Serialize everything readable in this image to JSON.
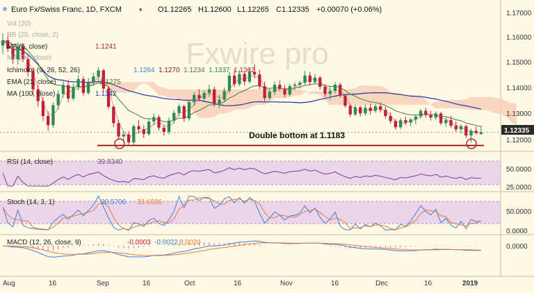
{
  "colors": {
    "background": "#fdf9e6",
    "up": "#2e8b57",
    "down": "#c0203a",
    "ma100": "#2233aa",
    "ema21": "#4b7f25",
    "bb": "#e07050",
    "cloud_fill": "#f6c9b3",
    "cloud_fill_green": "#cfdca0",
    "rsi": "#7b3b8f",
    "stoch_k": "#3b7fd8",
    "stoch_d": "#e87a36",
    "macd": "#3b7fd8",
    "macd_signal": "#e87a36",
    "macd_hist": "#e06a7a",
    "price_badge": "#2b2b2b",
    "support_line": "#8b0000"
  },
  "header": {
    "symbol": "Euro Fx/Swiss Franc, 1D, FXCM",
    "open": "O1.12265",
    "high": "H1.12600",
    "low": "L1.12265",
    "close": "C1.12335",
    "change": "+0.00070 (+0.06%)"
  },
  "indicators": [
    {
      "name": "Vol (20)",
      "value": ""
    },
    {
      "name": "BB (20, close, 2)",
      "value": ""
    },
    {
      "name": "MA (5, close)",
      "value": "1.1241"
    },
    {
      "name": "MA (20, close)",
      "value": ""
    },
    {
      "name": "Ichimoku (9, 26, 52, 26)",
      "values": [
        "1.1264",
        "1.1270",
        "1.1234",
        "1.1337",
        "1.1362"
      ]
    },
    {
      "name": "EMA (21, close)",
      "value": "1.1275"
    },
    {
      "name": "MA (100, close)",
      "value": "1.1342"
    }
  ],
  "watermark": "Fxwire pro",
  "annotation": "Double bottom at 1.1183",
  "price_badge": "1.12335",
  "panes": {
    "rsi": {
      "label": "RSI (14, close)",
      "value": "39.8340",
      "ticks": [
        "50.0000",
        "25.0000"
      ]
    },
    "stoch": {
      "label": "Stoch (14, 3, 1)",
      "k": "30.5706",
      "d": "33.6336",
      "ticks": [
        "50.0000",
        "0.0000"
      ]
    },
    "macd": {
      "label": "MACD (12, 26, close, 9)",
      "v1": "-0.0003",
      "v2": "-0.0022",
      "v3": "0.0020",
      "ticks": [
        "0.0000"
      ]
    }
  },
  "chart_data": {
    "type": "candlestick",
    "y_ticks": [
      "1.17000",
      "1.16000",
      "1.15000",
      "1.14000",
      "1.13000",
      "1.12000"
    ],
    "ylim": [
      1.116,
      1.1745
    ],
    "x_labels": [
      "Aug",
      "16",
      "Sep",
      "16",
      "Oct",
      "16",
      "Nov",
      "16",
      "Dec",
      "16",
      "2019"
    ],
    "support_level": 1.1183,
    "last_close": 1.12335,
    "candles": [
      [
        1.1573,
        1.162,
        1.154,
        1.1593
      ],
      [
        1.1593,
        1.1612,
        1.1548,
        1.156
      ],
      [
        1.156,
        1.1578,
        1.1502,
        1.1518
      ],
      [
        1.1518,
        1.1586,
        1.1498,
        1.1569
      ],
      [
        1.1569,
        1.158,
        1.1508,
        1.152
      ],
      [
        1.152,
        1.1535,
        1.1452,
        1.147
      ],
      [
        1.147,
        1.1488,
        1.138,
        1.1402
      ],
      [
        1.1402,
        1.1418,
        1.1335,
        1.1356
      ],
      [
        1.1356,
        1.1372,
        1.1278,
        1.1298
      ],
      [
        1.1298,
        1.1316,
        1.124,
        1.1262
      ],
      [
        1.1262,
        1.1352,
        1.1252,
        1.134
      ],
      [
        1.134,
        1.1398,
        1.1322,
        1.1384
      ],
      [
        1.1384,
        1.1433,
        1.137,
        1.1418
      ],
      [
        1.1418,
        1.1438,
        1.1352,
        1.1366
      ],
      [
        1.1366,
        1.1425,
        1.1358,
        1.141
      ],
      [
        1.141,
        1.1456,
        1.1398,
        1.1442
      ],
      [
        1.1442,
        1.1452,
        1.1376,
        1.1388
      ],
      [
        1.1388,
        1.1446,
        1.138,
        1.1432
      ],
      [
        1.1432,
        1.1466,
        1.1415,
        1.1452
      ],
      [
        1.1452,
        1.1488,
        1.1436,
        1.1476
      ],
      [
        1.1476,
        1.1482,
        1.1395,
        1.1405
      ],
      [
        1.1405,
        1.1412,
        1.1325,
        1.1334
      ],
      [
        1.1334,
        1.134,
        1.1254,
        1.127
      ],
      [
        1.127,
        1.1282,
        1.1205,
        1.1218
      ],
      [
        1.1218,
        1.124,
        1.1198,
        1.1226
      ],
      [
        1.1226,
        1.1238,
        1.1183,
        1.1195
      ],
      [
        1.1195,
        1.1266,
        1.1185,
        1.1258
      ],
      [
        1.1258,
        1.1282,
        1.1232,
        1.1246
      ],
      [
        1.1246,
        1.1262,
        1.1212,
        1.1228
      ],
      [
        1.1228,
        1.1288,
        1.122,
        1.1276
      ],
      [
        1.1276,
        1.1308,
        1.1262,
        1.1294
      ],
      [
        1.1294,
        1.1302,
        1.1242,
        1.1252
      ],
      [
        1.1252,
        1.1262,
        1.1222,
        1.1236
      ],
      [
        1.1236,
        1.1292,
        1.1226,
        1.128
      ],
      [
        1.128,
        1.1322,
        1.1268,
        1.131
      ],
      [
        1.131,
        1.1346,
        1.1296,
        1.1336
      ],
      [
        1.1336,
        1.1342,
        1.1276,
        1.1288
      ],
      [
        1.1288,
        1.136,
        1.128,
        1.1352
      ],
      [
        1.1352,
        1.1392,
        1.1338,
        1.138
      ],
      [
        1.138,
        1.1402,
        1.1354,
        1.1366
      ],
      [
        1.1366,
        1.1398,
        1.1352,
        1.1388
      ],
      [
        1.1388,
        1.142,
        1.1372,
        1.1402
      ],
      [
        1.1402,
        1.1412,
        1.1335,
        1.1346
      ],
      [
        1.1346,
        1.138,
        1.1328,
        1.1362
      ],
      [
        1.1362,
        1.1408,
        1.1352,
        1.1396
      ],
      [
        1.1396,
        1.147,
        1.1388,
        1.1455
      ],
      [
        1.1455,
        1.148,
        1.141,
        1.1422
      ],
      [
        1.1422,
        1.1476,
        1.1414,
        1.1462
      ],
      [
        1.1462,
        1.147,
        1.1418,
        1.1432
      ],
      [
        1.1432,
        1.1488,
        1.1425,
        1.147
      ],
      [
        1.147,
        1.15,
        1.1445,
        1.146
      ],
      [
        1.146,
        1.1478,
        1.1402,
        1.1414
      ],
      [
        1.1414,
        1.1432,
        1.1356,
        1.1368
      ],
      [
        1.1368,
        1.1404,
        1.136,
        1.1392
      ],
      [
        1.1392,
        1.1432,
        1.138,
        1.142
      ],
      [
        1.142,
        1.1436,
        1.1394,
        1.1404
      ],
      [
        1.1404,
        1.1418,
        1.137,
        1.1382
      ],
      [
        1.1382,
        1.1424,
        1.1376,
        1.1415
      ],
      [
        1.1415,
        1.143,
        1.1398,
        1.142
      ],
      [
        1.142,
        1.1436,
        1.1405,
        1.1428
      ],
      [
        1.1428,
        1.1474,
        1.142,
        1.1456
      ],
      [
        1.1456,
        1.147,
        1.1418,
        1.143
      ],
      [
        1.143,
        1.1462,
        1.1424,
        1.1448
      ],
      [
        1.1448,
        1.1454,
        1.1402,
        1.1412
      ],
      [
        1.1412,
        1.1422,
        1.1372,
        1.1384
      ],
      [
        1.1384,
        1.1412,
        1.136,
        1.1396
      ],
      [
        1.1396,
        1.143,
        1.1386,
        1.142
      ],
      [
        1.142,
        1.1428,
        1.137,
        1.1378
      ],
      [
        1.1378,
        1.1384,
        1.133,
        1.1338
      ],
      [
        1.1338,
        1.1345,
        1.1294,
        1.1304
      ],
      [
        1.1304,
        1.1342,
        1.1298,
        1.1332
      ],
      [
        1.1332,
        1.1338,
        1.1296,
        1.1308
      ],
      [
        1.1308,
        1.1342,
        1.13,
        1.133
      ],
      [
        1.133,
        1.1346,
        1.1304,
        1.1318
      ],
      [
        1.1318,
        1.1344,
        1.131,
        1.1336
      ],
      [
        1.1336,
        1.135,
        1.1312,
        1.1322
      ],
      [
        1.1322,
        1.1334,
        1.129,
        1.1298
      ],
      [
        1.1298,
        1.1312,
        1.1268,
        1.1278
      ],
      [
        1.1278,
        1.1286,
        1.1244,
        1.1254
      ],
      [
        1.1254,
        1.129,
        1.1246,
        1.1282
      ],
      [
        1.1282,
        1.1296,
        1.1262,
        1.1272
      ],
      [
        1.1272,
        1.129,
        1.1258,
        1.1284
      ],
      [
        1.1284,
        1.1304,
        1.1266,
        1.1296
      ],
      [
        1.1296,
        1.1326,
        1.1288,
        1.1318
      ],
      [
        1.1318,
        1.133,
        1.1292,
        1.1302
      ],
      [
        1.1302,
        1.1318,
        1.128,
        1.1292
      ],
      [
        1.1292,
        1.1316,
        1.1284,
        1.1308
      ],
      [
        1.1308,
        1.1314,
        1.1262,
        1.127
      ],
      [
        1.127,
        1.1292,
        1.1256,
        1.1282
      ],
      [
        1.1282,
        1.1298,
        1.1252,
        1.126
      ],
      [
        1.126,
        1.1278,
        1.1236,
        1.1246
      ],
      [
        1.1246,
        1.1266,
        1.123,
        1.1258
      ],
      [
        1.1258,
        1.1264,
        1.1212,
        1.1222
      ],
      [
        1.1222,
        1.1248,
        1.1195,
        1.124
      ],
      [
        1.124,
        1.1256,
        1.1224,
        1.1232
      ],
      [
        1.1227,
        1.126,
        1.1227,
        1.1234
      ]
    ]
  }
}
